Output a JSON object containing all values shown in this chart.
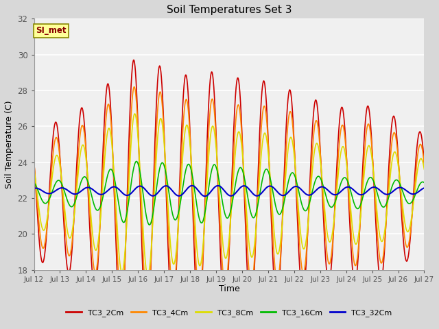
{
  "title": "Soil Temperatures Set 3",
  "xlabel": "Time",
  "ylabel": "Soil Temperature (C)",
  "ylim": [
    18,
    32
  ],
  "tick_labels": [
    "Jul 12",
    "Jul 13",
    "Jul 14",
    "Jul 15",
    "Jul 16",
    "Jul 17",
    "Jul 18",
    "Jul 19",
    "Jul 20",
    "Jul 21",
    "Jul 22",
    "Jul 23",
    "Jul 24",
    "Jul 25",
    "Jul 26",
    "Jul 27"
  ],
  "series": [
    {
      "label": "TC3_2Cm",
      "color": "#cc0000",
      "base": 22.2,
      "amp_per_day": [
        3.8,
        4.5,
        5.5,
        7.5,
        7.5,
        6.5,
        7.0,
        6.5,
        6.5,
        6.0,
        5.5,
        4.8,
        5.0,
        4.8,
        3.5
      ],
      "phase": 0.0,
      "linewidth": 1.2
    },
    {
      "label": "TC3_4Cm",
      "color": "#ff8800",
      "base": 22.2,
      "amp_per_day": [
        3.0,
        3.5,
        4.5,
        6.0,
        6.0,
        5.2,
        5.5,
        5.0,
        5.0,
        4.8,
        4.3,
        3.8,
        4.0,
        3.8,
        2.8
      ],
      "phase": 0.12,
      "linewidth": 1.2
    },
    {
      "label": "TC3_8Cm",
      "color": "#dddd00",
      "base": 22.2,
      "amp_per_day": [
        2.0,
        2.5,
        3.2,
        4.5,
        4.5,
        3.8,
        4.0,
        3.5,
        3.5,
        3.3,
        3.0,
        2.6,
        2.8,
        2.6,
        2.0
      ],
      "phase": 0.25,
      "linewidth": 1.2
    },
    {
      "label": "TC3_16Cm",
      "color": "#00bb00",
      "base": 22.3,
      "amp_per_day": [
        0.6,
        0.8,
        1.0,
        1.7,
        1.8,
        1.5,
        1.7,
        1.4,
        1.4,
        1.2,
        1.0,
        0.8,
        0.9,
        0.8,
        0.6
      ],
      "phase": 0.65,
      "linewidth": 1.2
    },
    {
      "label": "TC3_32Cm",
      "color": "#0000cc",
      "base": 22.4,
      "amp_per_day": [
        0.15,
        0.18,
        0.2,
        0.25,
        0.28,
        0.28,
        0.3,
        0.28,
        0.28,
        0.26,
        0.24,
        0.22,
        0.22,
        0.2,
        0.18
      ],
      "phase": 1.5,
      "linewidth": 1.5
    }
  ],
  "plot_bg_color": "#f0f0f0",
  "fig_bg_color": "#d8d8d8",
  "annotation_text": "SI_met",
  "annotation_bg": "#ffff99",
  "annotation_border": "#888800"
}
